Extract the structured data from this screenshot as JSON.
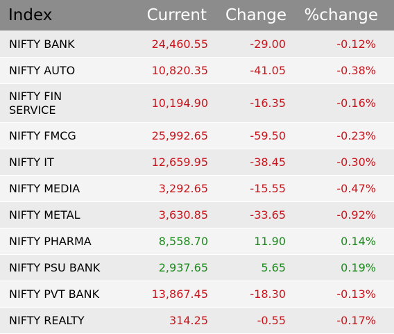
{
  "header": {
    "index": "Index",
    "current": "Current",
    "change": "Change",
    "pct_change": "%change"
  },
  "colors": {
    "header_bg": "#8c8c8c",
    "negative": "#c8161d",
    "positive": "#1c8a1c"
  },
  "rows": [
    {
      "name": "NIFTY BANK",
      "current": "24,460.55",
      "change": "-29.00",
      "pct": "-0.12%",
      "dir": "neg"
    },
    {
      "name": "NIFTY AUTO",
      "current": "10,820.35",
      "change": "-41.05",
      "pct": "-0.38%",
      "dir": "neg"
    },
    {
      "name": "NIFTY FIN SERVICE",
      "current": "10,194.90",
      "change": "-16.35",
      "pct": "-0.16%",
      "dir": "neg"
    },
    {
      "name": "NIFTY FMCG",
      "current": "25,992.65",
      "change": "-59.50",
      "pct": "-0.23%",
      "dir": "neg"
    },
    {
      "name": "NIFTY IT",
      "current": "12,659.95",
      "change": "-38.45",
      "pct": "-0.30%",
      "dir": "neg"
    },
    {
      "name": "NIFTY MEDIA",
      "current": "3,292.65",
      "change": "-15.55",
      "pct": "-0.47%",
      "dir": "neg"
    },
    {
      "name": "NIFTY METAL",
      "current": "3,630.85",
      "change": "-33.65",
      "pct": "-0.92%",
      "dir": "neg"
    },
    {
      "name": "NIFTY PHARMA",
      "current": "8,558.70",
      "change": "11.90",
      "pct": "0.14%",
      "dir": "pos"
    },
    {
      "name": "NIFTY PSU BANK",
      "current": "2,937.65",
      "change": "5.65",
      "pct": "0.19%",
      "dir": "pos"
    },
    {
      "name": "NIFTY PVT BANK",
      "current": "13,867.45",
      "change": "-18.30",
      "pct": "-0.13%",
      "dir": "neg"
    },
    {
      "name": "NIFTY REALTY",
      "current": "314.25",
      "change": "-0.55",
      "pct": "-0.17%",
      "dir": "neg"
    }
  ]
}
